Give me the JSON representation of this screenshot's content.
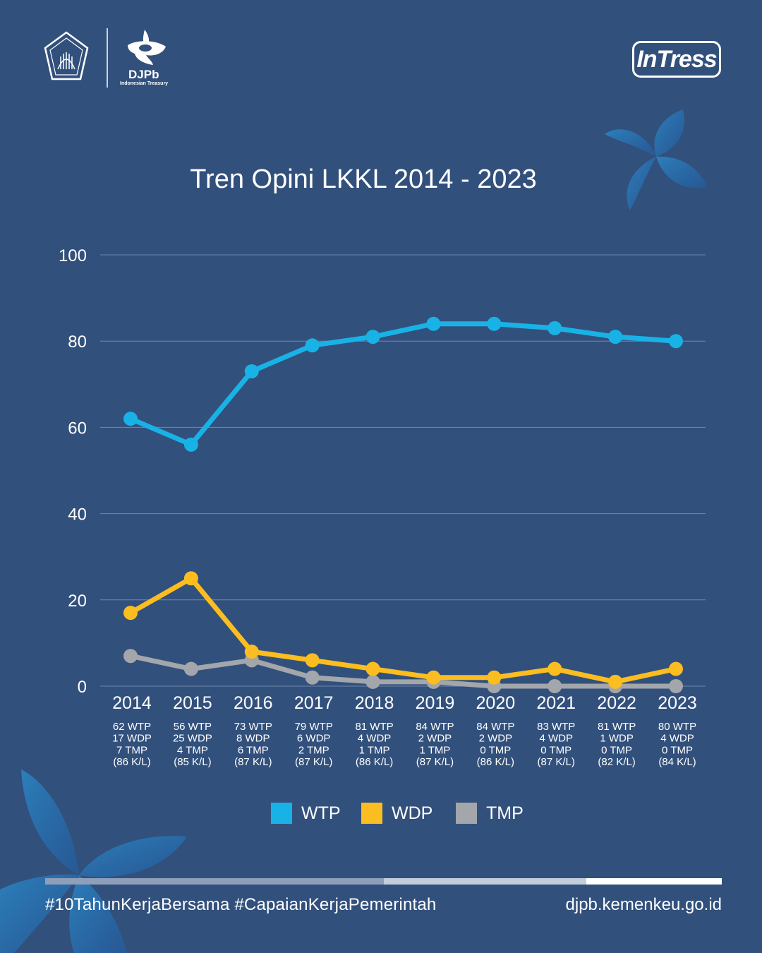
{
  "brand": {
    "org_short": "DJPb",
    "org_sub": "Indonesian Treasury",
    "campaign_logo": "InTress"
  },
  "footer": {
    "hashtags": "#10TahunKerjaBersama #CapaianKerjaPemerintah",
    "website": "djpb.kemenkeu.go.id"
  },
  "colors": {
    "background": "#32507c",
    "wtp": "#19b2e6",
    "wdp": "#fbbd1f",
    "tmp": "#a3a6ab",
    "gridline": "#6f87aa"
  },
  "chart_data": {
    "type": "line",
    "title": "Tren Opini LKKL 2014 - 2023",
    "xlabel": "",
    "ylabel": "",
    "ylim": [
      0,
      100
    ],
    "yticks": [
      "0",
      "20",
      "40",
      "60",
      "80",
      "100"
    ],
    "grid": true,
    "legend_position": "bottom",
    "categories": [
      "2014",
      "2015",
      "2016",
      "2017",
      "2018",
      "2019",
      "2020",
      "2021",
      "2022",
      "2023"
    ],
    "category_notes": [
      [
        "62 WTP",
        "17 WDP",
        "7 TMP",
        "(86 K/L)"
      ],
      [
        "56 WTP",
        "25 WDP",
        "4 TMP",
        "(85 K/L)"
      ],
      [
        "73 WTP",
        "8 WDP",
        "6 TMP",
        "(87 K/L)"
      ],
      [
        "79 WTP",
        "6 WDP",
        "2 TMP",
        "(87 K/L)"
      ],
      [
        "81 WTP",
        "4 WDP",
        "1 TMP",
        "(86 K/L)"
      ],
      [
        "84 WTP",
        "2 WDP",
        "1 TMP",
        "(87 K/L)"
      ],
      [
        "84 WTP",
        "2 WDP",
        "0 TMP",
        "(86 K/L)"
      ],
      [
        "83 WTP",
        "4 WDP",
        "0 TMP",
        "(87 K/L)"
      ],
      [
        "81 WTP",
        "1 WDP",
        "0 TMP",
        "(82 K/L)"
      ],
      [
        "80 WTP",
        "4 WDP",
        "0 TMP",
        "(84 K/L)"
      ]
    ],
    "series": [
      {
        "name": "WTP",
        "color": "#19b2e6",
        "values": [
          62,
          56,
          73,
          79,
          81,
          84,
          84,
          83,
          81,
          80
        ]
      },
      {
        "name": "WDP",
        "color": "#fbbd1f",
        "values": [
          17,
          25,
          8,
          6,
          4,
          2,
          2,
          4,
          1,
          4
        ]
      },
      {
        "name": "TMP",
        "color": "#a3a6ab",
        "values": [
          7,
          4,
          6,
          2,
          1,
          1,
          0,
          0,
          0,
          0
        ]
      }
    ]
  }
}
